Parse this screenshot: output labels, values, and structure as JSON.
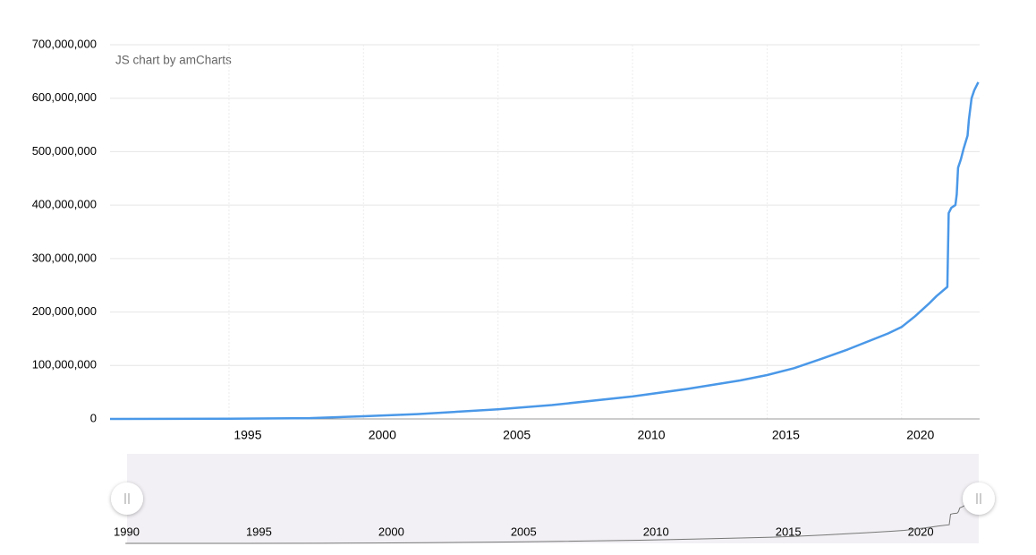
{
  "chart_data": {
    "type": "line",
    "credit": "JS chart by amCharts",
    "x": [
      1990.58,
      1995,
      1998,
      2000,
      2002,
      2005,
      2007,
      2010,
      2012,
      2014,
      2015,
      2016,
      2017,
      2018,
      2018.5,
      2019.5,
      2020,
      2020.5,
      2021,
      2021.3,
      2021.7,
      2021.75,
      2021.85,
      2022.0,
      2022.05,
      2022.1,
      2022.2,
      2022.3,
      2022.45,
      2022.5,
      2022.6,
      2022.7,
      2022.85
    ],
    "values": [
      0,
      300000,
      1500000,
      5000000,
      9000000,
      18000000,
      26000000,
      42000000,
      56000000,
      72000000,
      82000000,
      95000000,
      112000000,
      130000000,
      140000000,
      160000000,
      172000000,
      192000000,
      215000000,
      230000000,
      247000000,
      385000000,
      395000000,
      400000000,
      420000000,
      470000000,
      485000000,
      505000000,
      530000000,
      560000000,
      600000000,
      615000000,
      630000000
    ],
    "color": "#4a98e8",
    "xlim": [
      1990.58,
      2022.9
    ],
    "xticks": [
      1995,
      2000,
      2005,
      2010,
      2015,
      2020
    ],
    "ylim": [
      0,
      700000000
    ],
    "yticks": [
      0,
      {
        "value": 100000000,
        "label": "100,000,000"
      },
      {
        "value": 200000000,
        "label": "200,000,000"
      },
      {
        "value": 300000000,
        "label": "300,000,000"
      },
      {
        "value": 400000000,
        "label": "400,000,000"
      },
      {
        "value": 500000000,
        "label": "500,000,000"
      },
      {
        "value": 600000000,
        "label": "600,000,000"
      },
      {
        "value": 700000000,
        "label": "700,000,000"
      }
    ],
    "grid": true,
    "scrollbar": {
      "xlim": [
        1990,
        2022.85
      ],
      "xticks": [
        1990,
        1995,
        2000,
        2005,
        2010,
        2015,
        2020
      ]
    }
  }
}
